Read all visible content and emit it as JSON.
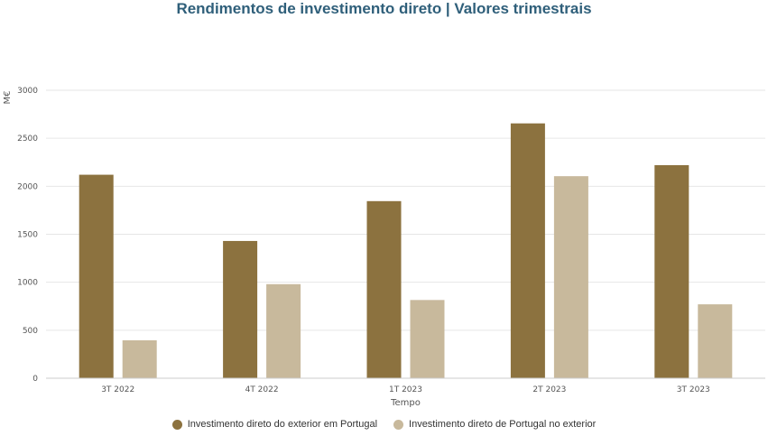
{
  "chart_data": {
    "type": "bar",
    "title": "Rendimentos de investimento direto | Valores trimestrais",
    "xlabel": "Tempo",
    "ylabel": "M€",
    "categories": [
      "3T 2022",
      "4T 2022",
      "1T 2023",
      "2T 2023",
      "3T 2023"
    ],
    "series": [
      {
        "name": "Investimento direto do exterior em Portugal",
        "color": "#8c723f",
        "values": [
          2120,
          1430,
          1845,
          2655,
          2220
        ]
      },
      {
        "name": "Investimento direto de Portugal no exterior",
        "color": "#c8b99c",
        "values": [
          395,
          980,
          815,
          2105,
          770
        ]
      }
    ],
    "ylim": [
      0,
      3000
    ],
    "yticks": [
      0,
      500,
      1000,
      1500,
      2000,
      2500,
      3000
    ],
    "grid": true,
    "legend_position": "bottom-center"
  }
}
